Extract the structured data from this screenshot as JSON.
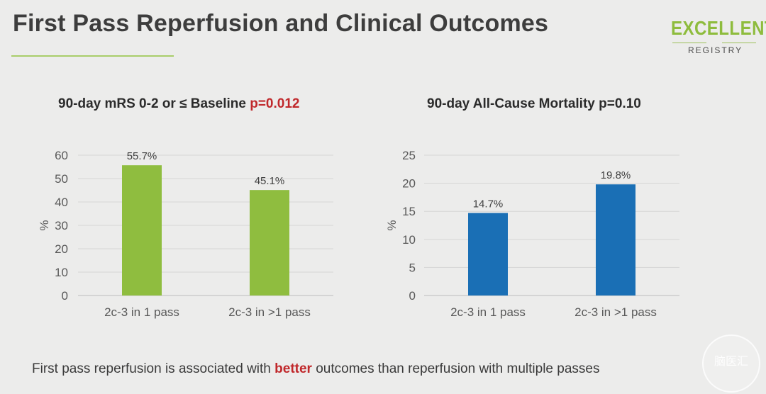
{
  "slide": {
    "title": "First Pass Reperfusion and Clinical Outcomes",
    "logo": {
      "main": "EXCELLENT",
      "sub": "REGISTRY"
    },
    "conclusion": {
      "before": "First pass reperfusion is associated with ",
      "emphasis": "better",
      "after": " outcomes than reperfusion with multiple passes"
    },
    "watermark": "脑医汇"
  },
  "colors": {
    "accent_green": "#8ebc3d",
    "bar_green": "#8fbd3f",
    "bar_blue": "#1a6fb5",
    "pvalue_red": "#c0282b"
  },
  "chart_data": [
    {
      "type": "bar",
      "title": "90-day mRS 0-2 or ≤ Baseline",
      "p_value": "p=0.012",
      "p_value_color": "#c0282b",
      "categories": [
        "2c-3 in 1 pass",
        "2c-3 in >1 pass"
      ],
      "values": [
        55.7,
        45.1
      ],
      "data_labels": [
        "55.7%",
        "45.1%"
      ],
      "ylabel": "%",
      "ylim": [
        0,
        60
      ],
      "yticks": [
        0,
        10,
        20,
        30,
        40,
        50,
        60
      ],
      "grid": true,
      "color": "#8fbd3f"
    },
    {
      "type": "bar",
      "title": "90-day All-Cause Mortality",
      "p_value": "p=0.10",
      "p_value_color": "#2b2b2b",
      "categories": [
        "2c-3 in 1 pass",
        "2c-3 in >1 pass"
      ],
      "values": [
        14.7,
        19.8
      ],
      "data_labels": [
        "14.7%",
        "19.8%"
      ],
      "ylabel": "%",
      "ylim": [
        0,
        25
      ],
      "yticks": [
        0,
        5,
        10,
        15,
        20,
        25
      ],
      "grid": true,
      "color": "#1a6fb5"
    }
  ]
}
